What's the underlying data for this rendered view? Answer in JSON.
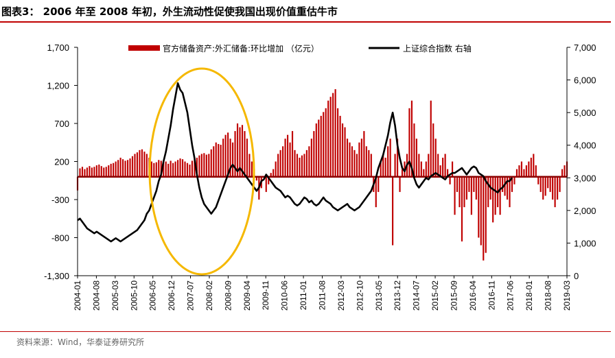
{
  "header": {
    "title": "图表3： 2006 年至 2008 年初，外生流动性促使我国出现价值重估牛市"
  },
  "footer": {
    "source": "资料来源：Wind，华泰证券研究所"
  },
  "chart_data": {
    "type": "bar+line",
    "legend_position": "top",
    "grid": false,
    "left_axis": {
      "ylim": [
        -1300,
        1700
      ],
      "ticks": [
        "1,700",
        "1,200",
        "700",
        "200",
        "-300",
        "-800",
        "-1,300"
      ]
    },
    "right_axis": {
      "ylim": [
        0,
        7000
      ],
      "ticks": [
        "7,000",
        "6,000",
        "5,000",
        "4,000",
        "3,000",
        "2,000",
        "1,000",
        "0"
      ]
    },
    "x_ticks": [
      "2004-01",
      "2004-08",
      "2005-03",
      "2005-10",
      "2006-05",
      "2006-12",
      "2007-07",
      "2008-02",
      "2008-09",
      "2009-04",
      "2009-11",
      "2010-06",
      "2011-01",
      "2011-08",
      "2012-03",
      "2012-10",
      "2013-05",
      "2013-12",
      "2014-07",
      "2015-02",
      "2015-09",
      "2016-04",
      "2016-11",
      "2017-06",
      "2018-01",
      "2018-08",
      "2019-03"
    ],
    "series": [
      {
        "name": "官方储备资产:外汇储备:环比增加 （亿元）",
        "axis": "left",
        "type": "bar",
        "color": "#c00000",
        "x_start": "2004-01",
        "step": "month",
        "values": [
          -180,
          110,
          130,
          100,
          120,
          140,
          120,
          130,
          150,
          160,
          140,
          120,
          130,
          150,
          170,
          180,
          200,
          220,
          250,
          230,
          210,
          220,
          240,
          270,
          300,
          320,
          350,
          360,
          330,
          300,
          250,
          200,
          180,
          190,
          220,
          210,
          190,
          200,
          170,
          210,
          180,
          200,
          220,
          240,
          230,
          200,
          180,
          160,
          210,
          230,
          250,
          280,
          300,
          310,
          290,
          300,
          360,
          400,
          450,
          430,
          420,
          500,
          550,
          580,
          500,
          450,
          600,
          700,
          650,
          680,
          600,
          500,
          300,
          200,
          100,
          -50,
          -300,
          -150,
          0,
          -200,
          -100,
          50,
          100,
          200,
          300,
          350,
          400,
          500,
          550,
          450,
          600,
          350,
          300,
          250,
          280,
          300,
          350,
          400,
          500,
          600,
          700,
          750,
          800,
          850,
          900,
          1000,
          1050,
          1100,
          1150,
          900,
          800,
          700,
          650,
          500,
          450,
          400,
          350,
          300,
          450,
          500,
          600,
          400,
          350,
          300,
          -200,
          -400,
          -200,
          200,
          300,
          250,
          400,
          500,
          -900,
          300,
          500,
          -200,
          100,
          200,
          300,
          900,
          1000,
          700,
          500,
          300,
          200,
          100,
          200,
          300,
          1000,
          700,
          500,
          300,
          150,
          250,
          300,
          100,
          -100,
          200,
          -500,
          -200,
          -400,
          -850,
          -400,
          -300,
          -200,
          -500,
          -200,
          -300,
          -800,
          -900,
          -1100,
          -1000,
          -400,
          -300,
          -600,
          -500,
          -400,
          -500,
          -200,
          -250,
          -300,
          -400,
          -200,
          -100,
          100,
          150,
          200,
          100,
          150,
          200,
          250,
          300,
          150,
          -100,
          -200,
          -300,
          -250,
          -150,
          -200,
          -300,
          -400,
          -300,
          -200,
          100,
          150,
          200
        ]
      },
      {
        "name": "上证综合指数 右轴",
        "axis": "right",
        "type": "line",
        "color": "#000000",
        "x_start": "2004-01",
        "step": "month",
        "values": [
          1700,
          1750,
          1650,
          1550,
          1450,
          1400,
          1350,
          1300,
          1350,
          1300,
          1250,
          1200,
          1150,
          1100,
          1050,
          1100,
          1150,
          1100,
          1050,
          1100,
          1150,
          1200,
          1250,
          1300,
          1350,
          1400,
          1500,
          1600,
          1700,
          1900,
          2000,
          2200,
          2400,
          2600,
          2900,
          3100,
          3500,
          3800,
          4200,
          4600,
          5100,
          5500,
          5900,
          5700,
          5600,
          5300,
          5000,
          4500,
          4000,
          3600,
          3100,
          2700,
          2400,
          2200,
          2100,
          2000,
          1900,
          2000,
          2100,
          2300,
          2500,
          2700,
          2900,
          3100,
          3300,
          3400,
          3300,
          3200,
          3300,
          3200,
          3100,
          3000,
          2900,
          2800,
          2700,
          2600,
          2700,
          2900,
          2950,
          3100,
          3000,
          2900,
          2800,
          2700,
          2650,
          2600,
          2500,
          2400,
          2450,
          2400,
          2300,
          2200,
          2150,
          2200,
          2300,
          2400,
          2350,
          2250,
          2300,
          2200,
          2150,
          2200,
          2300,
          2400,
          2300,
          2250,
          2200,
          2100,
          2050,
          2000,
          2050,
          2100,
          2150,
          2200,
          2100,
          2050,
          2000,
          2050,
          2100,
          2200,
          2300,
          2400,
          2500,
          2600,
          2800,
          3000,
          3300,
          3500,
          3700,
          4000,
          4300,
          4700,
          5000,
          4600,
          4000,
          3600,
          3300,
          3200,
          3400,
          3500,
          3300,
          3000,
          2800,
          2700,
          2800,
          2900,
          3000,
          2950,
          3050,
          3100,
          3150,
          3100,
          3050,
          3000,
          2950,
          3050,
          3100,
          3150,
          3150,
          3200,
          3250,
          3300,
          3200,
          3100,
          3200,
          3300,
          3350,
          3300,
          3150,
          3100,
          3050,
          2900,
          2800,
          2700,
          2650,
          2600,
          2550,
          2650,
          2700,
          2800,
          2900,
          2900,
          3000
        ]
      }
    ]
  }
}
